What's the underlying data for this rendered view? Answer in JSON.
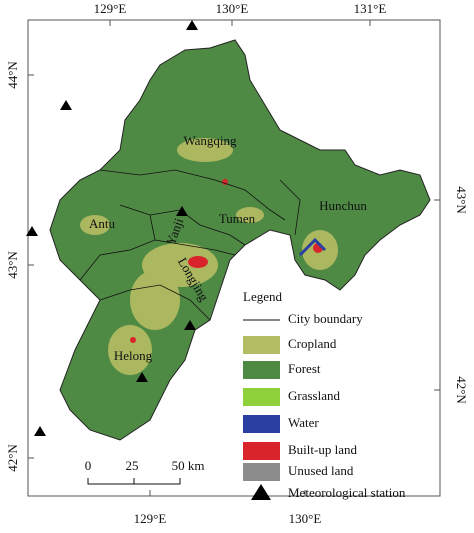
{
  "map": {
    "graticule": {
      "top": [
        "129°E",
        "130°E",
        "131°E"
      ],
      "bottom": [
        "129°E",
        "130°E"
      ],
      "left": [
        "44°N",
        "43°N",
        "42°N"
      ],
      "right": [
        "43°N",
        "42°N"
      ]
    },
    "places": [
      "Wangqing",
      "Hunchun",
      "Tumen",
      "Antu",
      "Yanji",
      "Longjing",
      "Helong"
    ],
    "legend": {
      "title": "Legend",
      "boundary": "City boundary",
      "items": [
        {
          "label": "Cropland",
          "color": "#b5bd62"
        },
        {
          "label": "Forest",
          "color": "#4f8a45"
        },
        {
          "label": "Grassland",
          "color": "#8fd13a"
        },
        {
          "label": "Water",
          "color": "#2a3fa0"
        },
        {
          "label": "Built-up land",
          "color": "#d9242b"
        },
        {
          "label": "Unused land",
          "color": "#8c8c8c"
        }
      ],
      "station": "Meteorological station"
    },
    "scale": [
      "0",
      "25",
      "50 km"
    ]
  }
}
